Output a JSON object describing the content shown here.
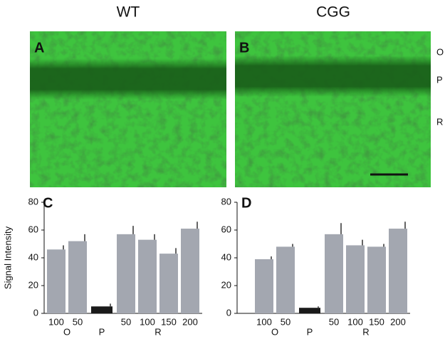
{
  "columns": [
    "WT",
    "CGG"
  ],
  "image_panels": [
    {
      "label": "A"
    },
    {
      "label": "B"
    }
  ],
  "layer_labels": [
    "O",
    "P",
    "R"
  ],
  "chart_data": [
    {
      "type": "bar",
      "panel": "C",
      "ylabel": "Signal Intensity",
      "categories": [
        "100",
        "50",
        null,
        "50",
        "100",
        "150",
        "200"
      ],
      "group_labels": [
        "O",
        "P",
        "R"
      ],
      "values": [
        46,
        52,
        5,
        57,
        53,
        43,
        61
      ],
      "errors": [
        3,
        5,
        2,
        6,
        4,
        4,
        5
      ],
      "colors": [
        "#a3a7b0",
        "#a3a7b0",
        "#1a1a1a",
        "#a3a7b0",
        "#a3a7b0",
        "#a3a7b0",
        "#a3a7b0"
      ],
      "ylim": [
        0,
        80
      ],
      "yticks": [
        0,
        20,
        40,
        60,
        80
      ]
    },
    {
      "type": "bar",
      "panel": "D",
      "categories": [
        "100",
        "50",
        null,
        "50",
        "100",
        "150",
        "200"
      ],
      "group_labels": [
        "O",
        "P",
        "R"
      ],
      "values": [
        39,
        48,
        4,
        57,
        49,
        48,
        61
      ],
      "errors": [
        2,
        2,
        1,
        8,
        4,
        2,
        5
      ],
      "colors": [
        "#a3a7b0",
        "#a3a7b0",
        "#1a1a1a",
        "#a3a7b0",
        "#a3a7b0",
        "#a3a7b0",
        "#a3a7b0"
      ],
      "ylim": [
        0,
        80
      ],
      "yticks": [
        0,
        20,
        40,
        60,
        80
      ]
    }
  ]
}
